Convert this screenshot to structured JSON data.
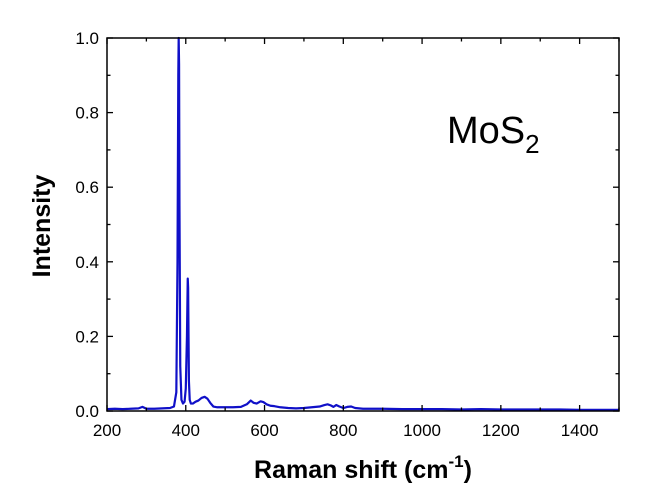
{
  "chart_data": {
    "type": "line",
    "title": "",
    "xlabel": "Raman shift (cm",
    "xlabel_sup": "-1",
    "xlabel_close": ")",
    "ylabel": "Intensity",
    "xlim": [
      200,
      1500
    ],
    "ylim": [
      0,
      1.0
    ],
    "x_ticks": [
      200,
      400,
      600,
      800,
      1000,
      1200,
      1400
    ],
    "x_tick_labels": [
      "200",
      "400",
      "600",
      "800",
      "1000",
      "1200",
      "1400"
    ],
    "y_ticks": [
      0,
      0.2,
      0.4,
      0.6,
      0.8,
      1.0
    ],
    "y_tick_labels": [
      "0.0",
      "0.2",
      "0.4",
      "0.6",
      "0.8",
      "1.0"
    ],
    "annotation": {
      "text": "MoS",
      "subscript": "2"
    },
    "grid": false,
    "series": [
      {
        "name": "MoS2",
        "color": "#1010c8",
        "x": [
          200,
          220,
          240,
          260,
          280,
          290,
          300,
          320,
          340,
          360,
          370,
          376,
          379,
          381,
          382,
          383,
          384,
          386,
          389,
          393,
          397,
          400,
          403,
          405,
          406,
          407,
          408,
          410,
          413,
          418,
          425,
          432,
          440,
          448,
          455,
          462,
          470,
          480,
          500,
          520,
          540,
          555,
          565,
          572,
          580,
          590,
          597,
          605,
          615,
          625,
          640,
          660,
          680,
          700,
          720,
          740,
          752,
          760,
          768,
          775,
          782,
          790,
          800,
          810,
          820,
          830,
          850,
          870,
          900,
          950,
          1000,
          1050,
          1100,
          1150,
          1200,
          1250,
          1300,
          1350,
          1400,
          1450,
          1500
        ],
        "y": [
          0.005,
          0.006,
          0.005,
          0.006,
          0.007,
          0.011,
          0.006,
          0.006,
          0.007,
          0.008,
          0.012,
          0.05,
          0.4,
          0.9,
          1.0,
          0.93,
          0.55,
          0.12,
          0.03,
          0.02,
          0.025,
          0.06,
          0.2,
          0.355,
          0.33,
          0.2,
          0.08,
          0.03,
          0.02,
          0.02,
          0.025,
          0.028,
          0.035,
          0.038,
          0.033,
          0.022,
          0.012,
          0.01,
          0.01,
          0.01,
          0.011,
          0.018,
          0.028,
          0.022,
          0.02,
          0.026,
          0.024,
          0.018,
          0.014,
          0.013,
          0.01,
          0.008,
          0.007,
          0.008,
          0.01,
          0.012,
          0.016,
          0.018,
          0.015,
          0.011,
          0.016,
          0.012,
          0.008,
          0.011,
          0.012,
          0.008,
          0.006,
          0.006,
          0.006,
          0.005,
          0.005,
          0.005,
          0.004,
          0.005,
          0.004,
          0.004,
          0.004,
          0.004,
          0.003,
          0.003,
          0.003
        ]
      }
    ]
  }
}
